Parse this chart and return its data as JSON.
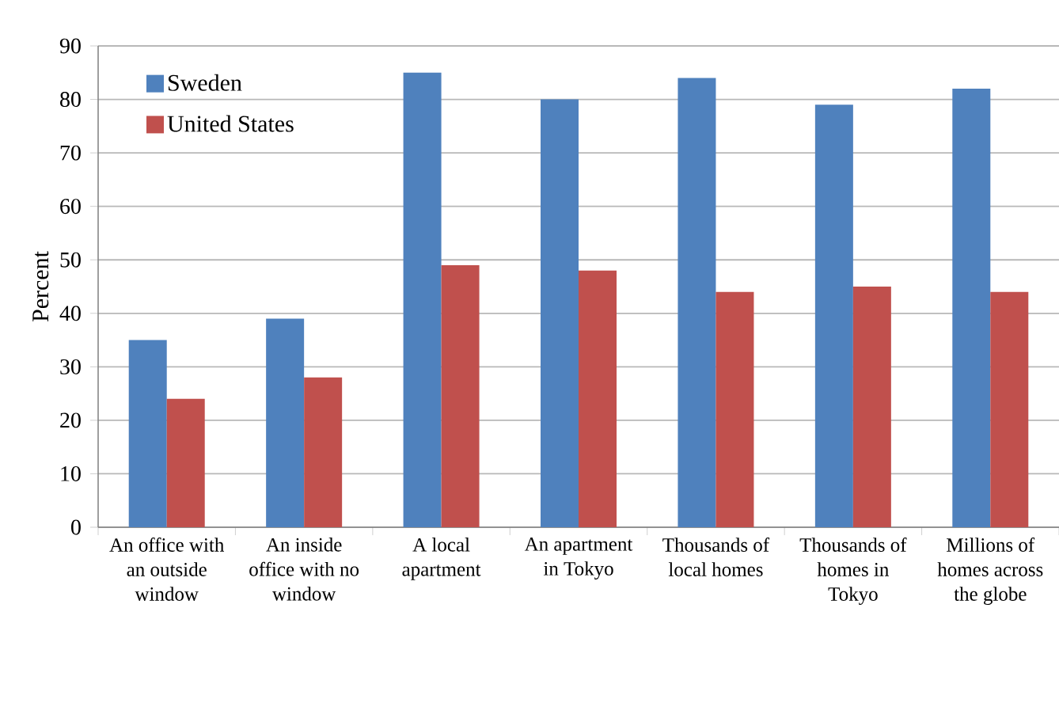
{
  "chart_data": {
    "type": "bar",
    "ylabel": "Percent",
    "categories": [
      "An office with an outside window",
      "An inside office with no window",
      "A local apartment",
      "An apartment in Tokyo",
      "Thousands of local homes",
      "Thousands of homes in Tokyo",
      "Millions of homes across the globe"
    ],
    "series": [
      {
        "name": "Sweden",
        "color": "#4f81bd",
        "values": [
          35,
          39,
          85,
          80,
          84,
          79,
          82
        ]
      },
      {
        "name": "United States",
        "color": "#c0504d",
        "values": [
          24,
          28,
          49,
          48,
          44,
          45,
          44
        ]
      }
    ],
    "ylim": [
      0,
      90
    ],
    "yticks": [
      0,
      10,
      20,
      30,
      40,
      50,
      60,
      70,
      80,
      90
    ],
    "grid": "y",
    "legend": "top left"
  }
}
